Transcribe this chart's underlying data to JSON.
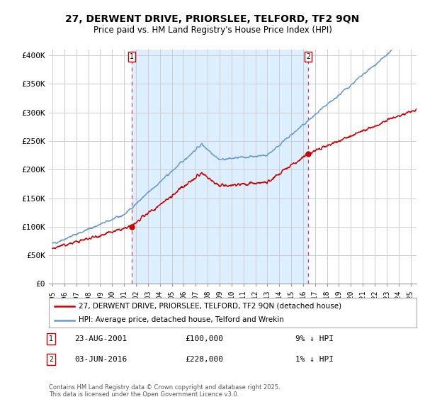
{
  "title": "27, DERWENT DRIVE, PRIORSLEE, TELFORD, TF2 9QN",
  "subtitle": "Price paid vs. HM Land Registry's House Price Index (HPI)",
  "ylabel_ticks": [
    "£0",
    "£50K",
    "£100K",
    "£150K",
    "£200K",
    "£250K",
    "£300K",
    "£350K",
    "£400K"
  ],
  "ytick_values": [
    0,
    50000,
    100000,
    150000,
    200000,
    250000,
    300000,
    350000,
    400000
  ],
  "ylim": [
    0,
    410000
  ],
  "xlim_start": 1994.7,
  "xlim_end": 2025.5,
  "sale1_date": 2001.645,
  "sale1_price": 100000,
  "sale2_date": 2016.42,
  "sale2_price": 228000,
  "legend_line1": "27, DERWENT DRIVE, PRIORSLEE, TELFORD, TF2 9QN (detached house)",
  "legend_line2": "HPI: Average price, detached house, Telford and Wrekin",
  "annotation1_label": "1",
  "annotation1_date": "23-AUG-2001",
  "annotation1_price": "£100,000",
  "annotation1_hpi": "9% ↓ HPI",
  "annotation2_label": "2",
  "annotation2_date": "03-JUN-2016",
  "annotation2_price": "£228,000",
  "annotation2_hpi": "1% ↓ HPI",
  "footer": "Contains HM Land Registry data © Crown copyright and database right 2025.\nThis data is licensed under the Open Government Licence v3.0.",
  "red_color": "#cc0000",
  "blue_color": "#6699cc",
  "shade_color": "#ddeeff",
  "background_color": "#ffffff",
  "grid_color": "#cccccc",
  "seed": 42
}
